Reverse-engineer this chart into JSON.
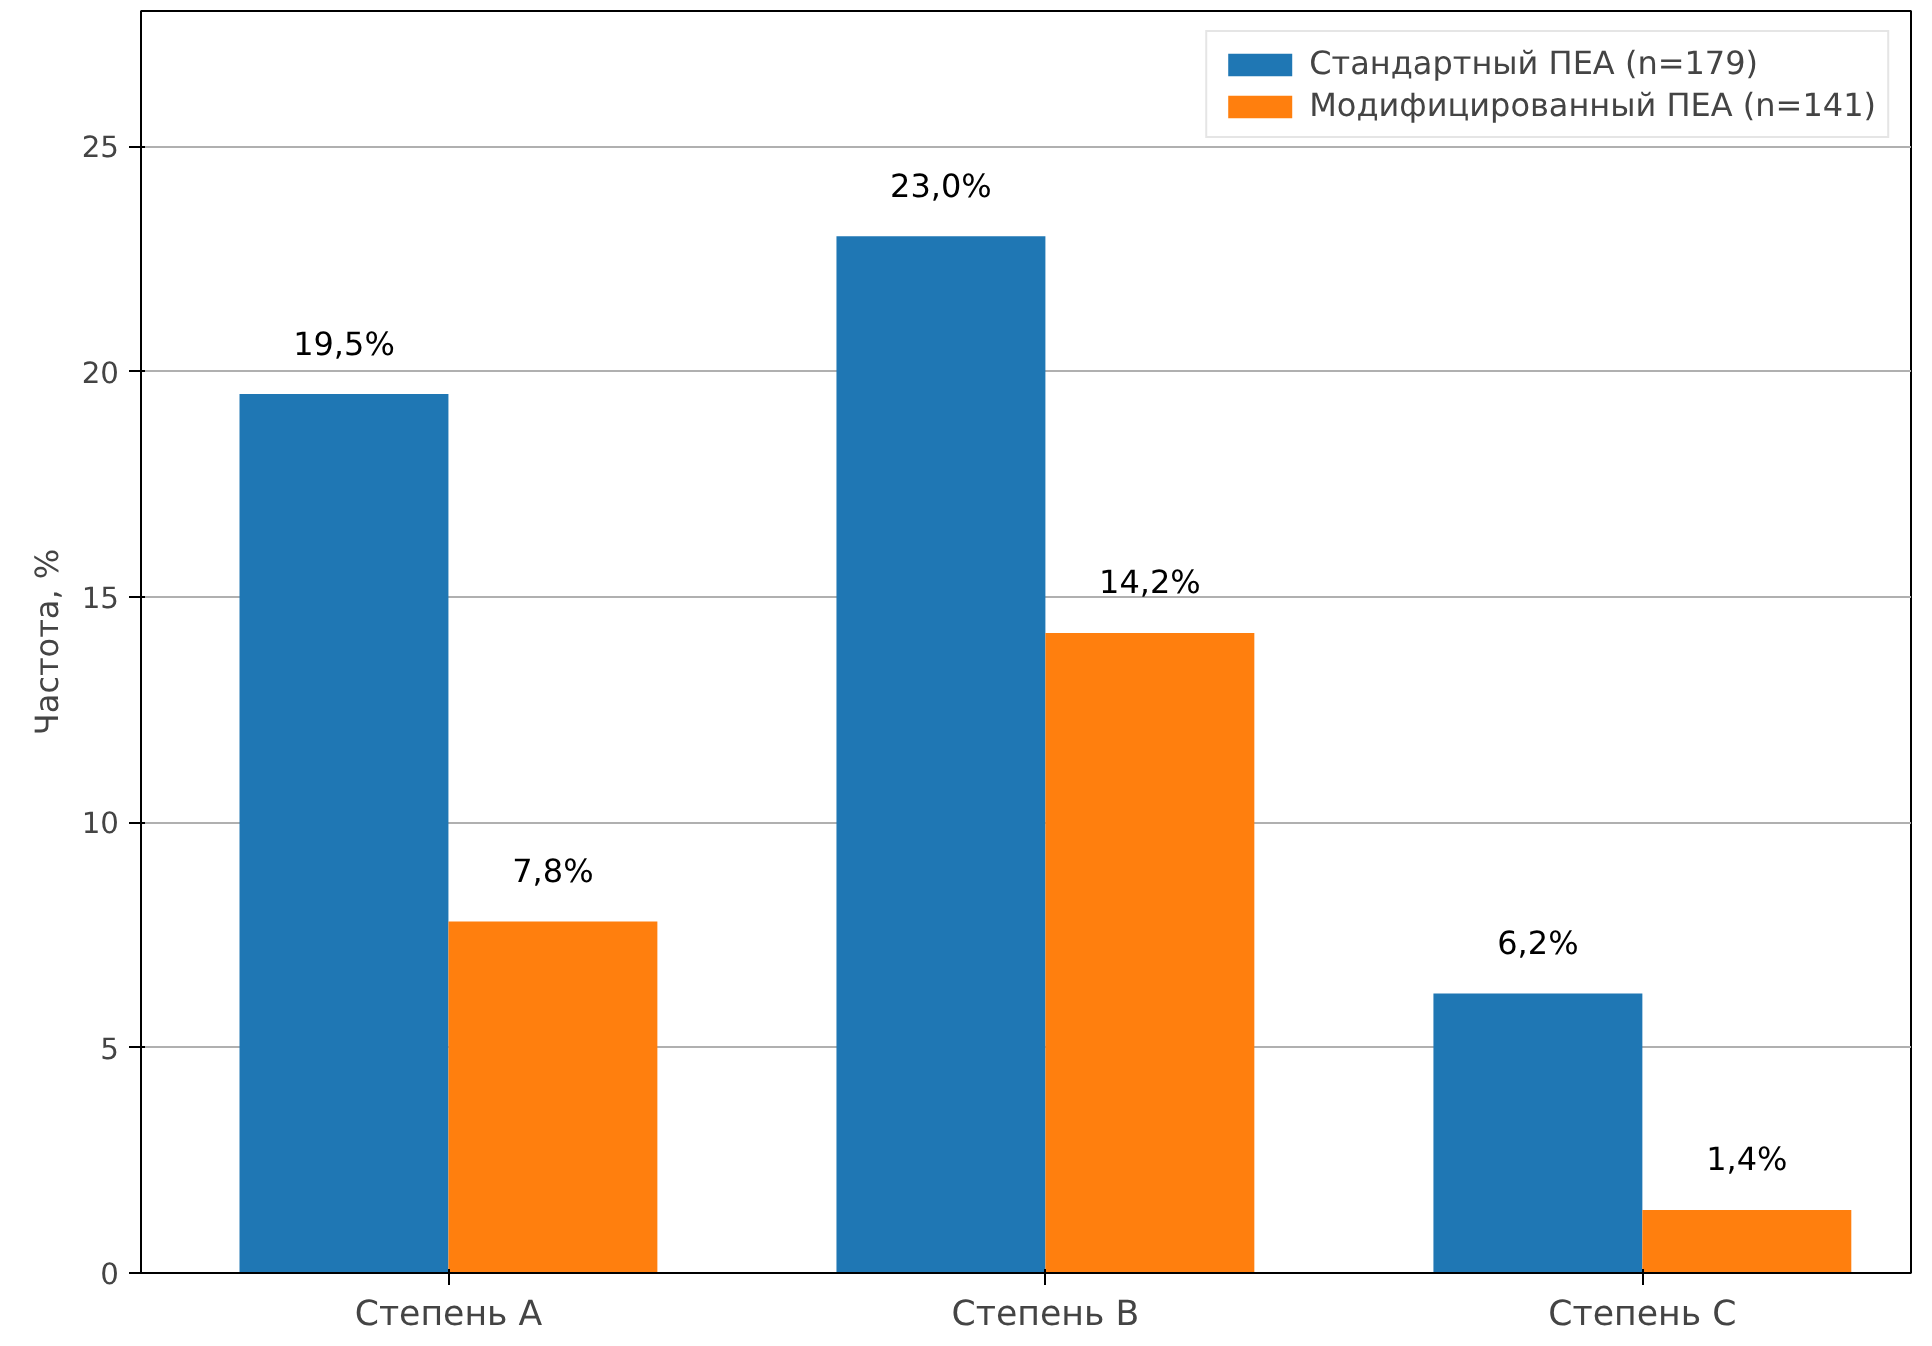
{
  "chart_data": {
    "type": "bar",
    "ylabel": "Частота, %",
    "categories": [
      "Степень A",
      "Степень B",
      "Степень C"
    ],
    "series": [
      {
        "name": "Стандартный ПЕА (n=179)",
        "color": "#1f77b4",
        "values": [
          19.5,
          23.0,
          6.2
        ],
        "value_labels": [
          "19,5%",
          "23,0%",
          "6,2%"
        ]
      },
      {
        "name": "Модифицированный ПЕА (n=141)",
        "color": "#ff7f0e",
        "values": [
          7.8,
          14.2,
          1.4
        ],
        "value_labels": [
          "7,8%",
          "14,2%",
          "1,4%"
        ]
      }
    ],
    "ylim": [
      0,
      28
    ],
    "yticks": [
      0,
      5,
      10,
      15,
      20,
      25
    ],
    "grid": "y",
    "legend": "top right"
  }
}
